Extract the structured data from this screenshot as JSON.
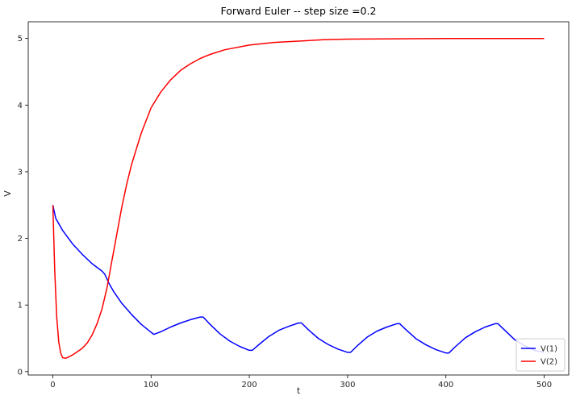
{
  "chart_data": {
    "type": "line",
    "title": "Forward Euler -- step size =0.2",
    "xlabel": "t",
    "ylabel": "V",
    "xlim": [
      -25,
      525
    ],
    "ylim": [
      -0.05,
      5.25
    ],
    "xticks": [
      0,
      100,
      200,
      300,
      400,
      500
    ],
    "yticks": [
      0,
      1,
      2,
      3,
      4,
      5
    ],
    "grid": false,
    "legend_position": "lower-right",
    "series": [
      {
        "name": "V(1)",
        "color": "#0000ff",
        "x": [
          0,
          3,
          10,
          20,
          30,
          40,
          50,
          53,
          57,
          62,
          70,
          80,
          90,
          100,
          103,
          110,
          120,
          130,
          140,
          150,
          153,
          160,
          170,
          180,
          190,
          200,
          203,
          210,
          220,
          230,
          240,
          250,
          253,
          260,
          270,
          280,
          290,
          300,
          303,
          310,
          320,
          330,
          340,
          350,
          353,
          360,
          370,
          380,
          390,
          400,
          403,
          410,
          420,
          430,
          440,
          450,
          453,
          460,
          470,
          480,
          490,
          500
        ],
        "y": [
          2.5,
          2.3,
          2.12,
          1.92,
          1.76,
          1.62,
          1.51,
          1.46,
          1.33,
          1.2,
          1.03,
          0.86,
          0.71,
          0.59,
          0.56,
          0.6,
          0.67,
          0.73,
          0.78,
          0.82,
          0.82,
          0.71,
          0.57,
          0.46,
          0.38,
          0.32,
          0.32,
          0.41,
          0.53,
          0.62,
          0.68,
          0.73,
          0.73,
          0.63,
          0.5,
          0.41,
          0.34,
          0.29,
          0.29,
          0.39,
          0.52,
          0.61,
          0.67,
          0.72,
          0.72,
          0.62,
          0.49,
          0.4,
          0.33,
          0.28,
          0.28,
          0.38,
          0.51,
          0.6,
          0.67,
          0.72,
          0.72,
          0.62,
          0.48,
          0.39,
          0.32,
          0.29
        ]
      },
      {
        "name": "V(2)",
        "color": "#ff0000",
        "x": [
          0,
          2,
          4,
          6,
          8,
          10,
          13,
          16,
          20,
          25,
          30,
          35,
          40,
          45,
          50,
          55,
          60,
          65,
          70,
          75,
          80,
          90,
          100,
          110,
          120,
          130,
          140,
          150,
          160,
          175,
          200,
          225,
          250,
          275,
          300,
          350,
          400,
          450,
          500
        ],
        "y": [
          2.5,
          1.5,
          0.82,
          0.45,
          0.28,
          0.21,
          0.2,
          0.22,
          0.25,
          0.3,
          0.35,
          0.43,
          0.55,
          0.72,
          0.94,
          1.25,
          1.65,
          2.05,
          2.45,
          2.8,
          3.1,
          3.58,
          3.96,
          4.2,
          4.38,
          4.52,
          4.62,
          4.7,
          4.76,
          4.83,
          4.9,
          4.94,
          4.96,
          4.98,
          4.99,
          4.995,
          5.0,
          5.0,
          5.0
        ]
      }
    ]
  }
}
